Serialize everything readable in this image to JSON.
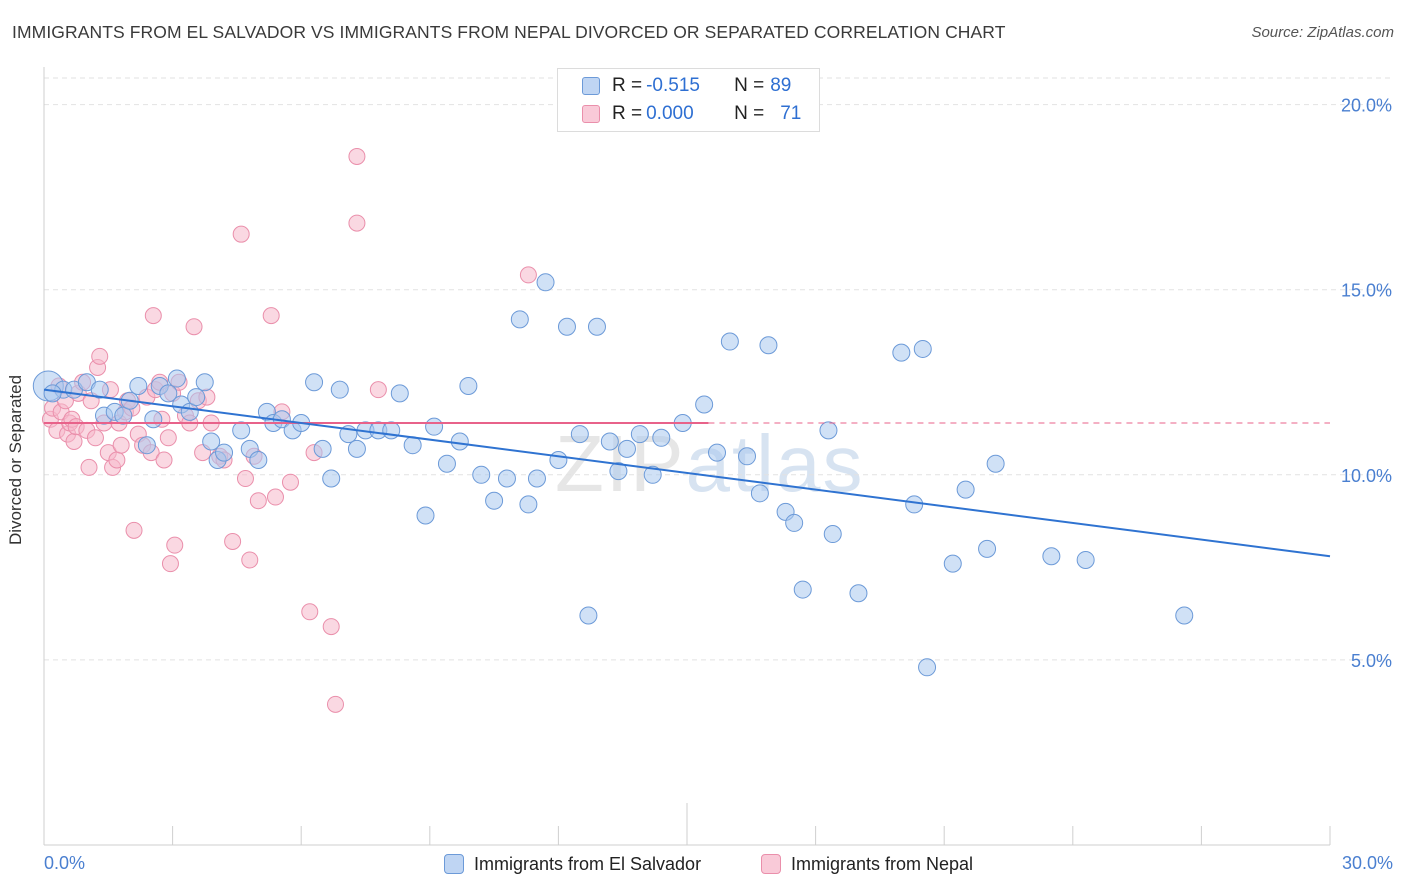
{
  "title": "IMMIGRANTS FROM EL SALVADOR VS IMMIGRANTS FROM NEPAL DIVORCED OR SEPARATED CORRELATION CHART",
  "source": "Source: ZipAtlas.com",
  "watermark": {
    "zip": "ZIP",
    "atlas": "atlas"
  },
  "stats": [
    {
      "r_label": "R = ",
      "r_value": "-0.515",
      "n_label": "N = ",
      "n_value": "89"
    },
    {
      "r_label": "R = ",
      "r_value": "0.000",
      "n_label": "N = ",
      "n_value": "71"
    }
  ],
  "colors": {
    "blue_fill": "#a9c8ef",
    "blue_stroke": "#6c9ad8",
    "blue_line": "#2f73d1",
    "pink_fill": "#f6b8ca",
    "pink_stroke": "#ea8fab",
    "pink_line": "#e8628a",
    "tick_text": "#4a7fd0",
    "grid": "#e2e2e2"
  },
  "chart_data": {
    "type": "scatter",
    "title": "IMMIGRANTS FROM EL SALVADOR VS IMMIGRANTS FROM NEPAL DIVORCED OR SEPARATED CORRELATION CHART",
    "xlabel": "",
    "ylabel": "Divorced or Separated",
    "xlim": [
      0,
      30
    ],
    "ylim": [
      0,
      20.8
    ],
    "x_tick_labels": [
      "0.0%",
      "30.0%"
    ],
    "y_ticks": [
      5,
      10,
      15,
      20
    ],
    "y_tick_labels": [
      "5.0%",
      "10.0%",
      "15.0%",
      "20.0%"
    ],
    "grid": true,
    "legend_position": "bottom",
    "series": [
      {
        "name": "Immigrants from El Salvador",
        "color": "#a9c8ef",
        "trend": {
          "x": [
            0,
            30
          ],
          "y": [
            12.3,
            7.8
          ]
        },
        "points": [
          [
            0.1,
            12.4
          ],
          [
            0.45,
            12.3
          ],
          [
            0.7,
            12.3
          ],
          [
            1.0,
            12.5
          ],
          [
            1.4,
            11.6
          ],
          [
            1.3,
            12.3
          ],
          [
            1.65,
            11.7
          ],
          [
            1.85,
            11.6
          ],
          [
            2.0,
            12.0
          ],
          [
            2.4,
            10.8
          ],
          [
            2.55,
            11.5
          ],
          [
            2.7,
            12.4
          ],
          [
            2.9,
            12.2
          ],
          [
            3.1,
            12.6
          ],
          [
            3.2,
            11.9
          ],
          [
            3.4,
            11.7
          ],
          [
            3.55,
            12.1
          ],
          [
            3.75,
            12.5
          ],
          [
            3.9,
            10.9
          ],
          [
            4.05,
            10.4
          ],
          [
            4.2,
            10.6
          ],
          [
            4.6,
            11.2
          ],
          [
            4.8,
            10.7
          ],
          [
            5.0,
            10.4
          ],
          [
            5.2,
            11.7
          ],
          [
            5.35,
            11.4
          ],
          [
            5.55,
            11.5
          ],
          [
            5.8,
            11.2
          ],
          [
            6.0,
            11.4
          ],
          [
            6.3,
            12.5
          ],
          [
            6.5,
            10.7
          ],
          [
            6.7,
            9.9
          ],
          [
            6.9,
            12.3
          ],
          [
            7.1,
            11.1
          ],
          [
            7.3,
            10.7
          ],
          [
            7.5,
            11.2
          ],
          [
            7.8,
            11.2
          ],
          [
            8.1,
            11.2
          ],
          [
            8.3,
            12.2
          ],
          [
            8.6,
            10.8
          ],
          [
            8.9,
            8.9
          ],
          [
            9.1,
            11.3
          ],
          [
            9.4,
            10.3
          ],
          [
            9.7,
            10.9
          ],
          [
            9.9,
            12.4
          ],
          [
            10.2,
            10.0
          ],
          [
            10.5,
            9.3
          ],
          [
            10.8,
            9.9
          ],
          [
            11.1,
            14.2
          ],
          [
            11.3,
            9.2
          ],
          [
            11.5,
            9.9
          ],
          [
            11.7,
            15.2
          ],
          [
            12.0,
            10.4
          ],
          [
            12.2,
            14.0
          ],
          [
            12.5,
            11.1
          ],
          [
            12.7,
            6.2
          ],
          [
            12.9,
            14.0
          ],
          [
            13.2,
            10.9
          ],
          [
            13.4,
            10.1
          ],
          [
            13.6,
            10.7
          ],
          [
            13.9,
            11.1
          ],
          [
            14.2,
            10.0
          ],
          [
            14.4,
            11.0
          ],
          [
            14.9,
            11.4
          ],
          [
            15.4,
            11.9
          ],
          [
            15.7,
            10.6
          ],
          [
            16.0,
            13.6
          ],
          [
            16.4,
            10.5
          ],
          [
            16.7,
            9.5
          ],
          [
            16.9,
            13.5
          ],
          [
            17.3,
            9.0
          ],
          [
            17.5,
            8.7
          ],
          [
            17.7,
            6.9
          ],
          [
            18.3,
            11.2
          ],
          [
            18.4,
            8.4
          ],
          [
            19.0,
            6.8
          ],
          [
            20.0,
            13.3
          ],
          [
            20.3,
            9.2
          ],
          [
            20.5,
            13.4
          ],
          [
            20.6,
            4.8
          ],
          [
            21.2,
            7.6
          ],
          [
            21.5,
            9.6
          ],
          [
            22.0,
            8.0
          ],
          [
            22.2,
            10.3
          ],
          [
            23.5,
            7.8
          ],
          [
            24.3,
            7.7
          ],
          [
            26.6,
            6.2
          ],
          [
            0.2,
            12.2
          ],
          [
            2.2,
            12.4
          ]
        ]
      },
      {
        "name": "Immigrants from Nepal",
        "color": "#f6b8ca",
        "trend": {
          "x": [
            0,
            15.5
          ],
          "y": [
            11.4,
            11.4
          ]
        },
        "trend_dashed": {
          "x": [
            15.5,
            30
          ],
          "y": [
            11.4,
            11.4
          ]
        },
        "points": [
          [
            0.15,
            11.5
          ],
          [
            0.2,
            11.8
          ],
          [
            0.3,
            11.2
          ],
          [
            0.4,
            11.7
          ],
          [
            0.5,
            12.0
          ],
          [
            0.55,
            11.1
          ],
          [
            0.6,
            11.4
          ],
          [
            0.65,
            11.5
          ],
          [
            0.7,
            10.9
          ],
          [
            0.75,
            11.3
          ],
          [
            0.8,
            12.2
          ],
          [
            0.9,
            12.5
          ],
          [
            1.0,
            11.2
          ],
          [
            1.05,
            10.2
          ],
          [
            1.1,
            12.0
          ],
          [
            1.2,
            11.0
          ],
          [
            1.25,
            12.9
          ],
          [
            1.3,
            13.2
          ],
          [
            1.4,
            11.4
          ],
          [
            1.5,
            10.6
          ],
          [
            1.55,
            12.3
          ],
          [
            1.6,
            10.2
          ],
          [
            1.7,
            10.4
          ],
          [
            1.75,
            11.4
          ],
          [
            1.8,
            10.8
          ],
          [
            1.9,
            11.7
          ],
          [
            1.95,
            12.0
          ],
          [
            2.05,
            11.8
          ],
          [
            2.1,
            8.5
          ],
          [
            2.2,
            11.1
          ],
          [
            2.3,
            10.8
          ],
          [
            2.4,
            12.1
          ],
          [
            2.5,
            10.6
          ],
          [
            2.55,
            14.3
          ],
          [
            2.6,
            12.3
          ],
          [
            2.7,
            12.5
          ],
          [
            2.75,
            11.5
          ],
          [
            2.8,
            10.4
          ],
          [
            2.9,
            11.0
          ],
          [
            3.0,
            12.2
          ],
          [
            3.05,
            8.1
          ],
          [
            3.15,
            12.5
          ],
          [
            3.3,
            11.6
          ],
          [
            3.4,
            11.4
          ],
          [
            3.5,
            14.0
          ],
          [
            3.6,
            12.0
          ],
          [
            3.7,
            10.6
          ],
          [
            3.8,
            12.1
          ],
          [
            3.9,
            11.4
          ],
          [
            4.1,
            10.5
          ],
          [
            4.2,
            10.4
          ],
          [
            4.4,
            8.2
          ],
          [
            4.6,
            16.5
          ],
          [
            4.7,
            9.9
          ],
          [
            4.8,
            7.7
          ],
          [
            4.9,
            10.5
          ],
          [
            5.0,
            9.3
          ],
          [
            5.3,
            14.3
          ],
          [
            5.4,
            9.4
          ],
          [
            5.55,
            11.7
          ],
          [
            5.75,
            9.8
          ],
          [
            6.2,
            6.3
          ],
          [
            6.3,
            10.6
          ],
          [
            6.7,
            5.9
          ],
          [
            6.8,
            3.8
          ],
          [
            7.3,
            18.6
          ],
          [
            7.3,
            16.8
          ],
          [
            7.8,
            12.3
          ],
          [
            11.3,
            15.4
          ],
          [
            2.95,
            7.6
          ],
          [
            0.35,
            12.4
          ]
        ]
      }
    ]
  }
}
